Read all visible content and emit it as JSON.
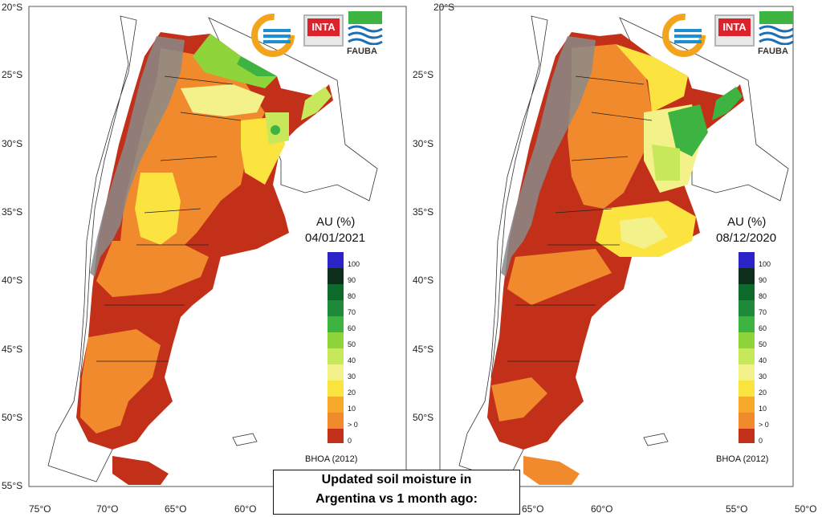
{
  "maps": [
    {
      "au_label": "AU (%)",
      "date": "04/01/2021",
      "source": "BHOA (2012)",
      "lat_labels": [
        "20°S",
        "25°S",
        "30°S",
        "35°S",
        "40°S",
        "45°S",
        "50°S",
        "55°S"
      ],
      "lon_labels": [
        "75°O",
        "70°O",
        "65°O",
        "60°O"
      ]
    },
    {
      "au_label": "AU (%)",
      "date": "08/12/2020",
      "source": "BHOA (2012)",
      "lat_labels": [
        "20°S",
        "25°S",
        "30°S",
        "35°S",
        "40°S",
        "45°S",
        "50°S"
      ],
      "lon_labels": [
        "65°O",
        "60°O",
        "55°O",
        "50°O"
      ]
    }
  ],
  "scale": {
    "labels": [
      "100",
      "90",
      "80",
      "70",
      "60",
      "50",
      "40",
      "30",
      "20",
      "10",
      "> 0",
      "0"
    ],
    "colors": [
      "#2b23c8",
      "#0d2e1a",
      "#0e6a2a",
      "#1f8b3a",
      "#3db441",
      "#8fd43a",
      "#c8e85c",
      "#f3f28a",
      "#fbe340",
      "#f7aa2a",
      "#f08a2c",
      "#c3301a"
    ]
  },
  "logos": {
    "inta": "INTA",
    "fauba": "FAUBA"
  },
  "caption": {
    "line1": "Updated soil moisture in",
    "line2": "Argentina vs 1 month ago:"
  }
}
